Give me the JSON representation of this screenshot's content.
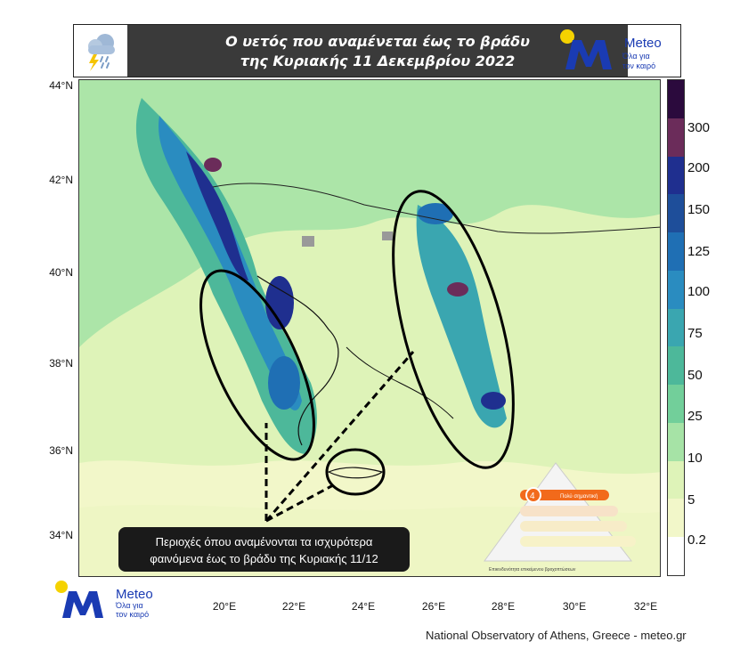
{
  "title": {
    "line1": "Ο υετός που αναμένεται έως το βράδυ",
    "line2": "της Κυριακής 11 Δεκεμβρίου 2022"
  },
  "logo": {
    "brand": "Meteo",
    "tagline_line1": "Όλα για",
    "tagline_line2": "τον καιρό",
    "colors": {
      "sun": "#f5d200",
      "m": "#1a3bb3",
      "text": "#1a3bb3"
    }
  },
  "icons": [
    "weather-storm-icon",
    "meteo-logo-icon"
  ],
  "axes": {
    "latitudes": [
      "44°N",
      "42°N",
      "40°N",
      "38°N",
      "36°N",
      "34°N"
    ],
    "longitudes": [
      "20°E",
      "22°E",
      "24°E",
      "26°E",
      "28°E",
      "30°E",
      "32°E"
    ]
  },
  "colorbar": {
    "labels": [
      "300",
      "200",
      "150",
      "125",
      "100",
      "75",
      "50",
      "25",
      "10",
      "5",
      "0.2"
    ],
    "colors": [
      "#2b0a3d",
      "#6b2c5a",
      "#1f2f8f",
      "#1e4e9a",
      "#1f6fb4",
      "#2a8cc0",
      "#3aa6b0",
      "#4db89a",
      "#72cf9a",
      "#a6e3a6",
      "#def3b8",
      "#f2f7c9",
      "#ffffff"
    ]
  },
  "callout": {
    "line1": "Περιοχές όπου αναμένονται τα ισχυρότερα",
    "line2": "φαινόμενα έως το βράδυ της Κυριακής 11/12"
  },
  "warning_scale": {
    "active_level": "4",
    "active_label": "Πολύ σημαντική",
    "caption": "Επικινδυνότητα επικείμενου βροχοπτώσεων",
    "accent": "#f26a1b"
  },
  "credit": "National Observatory of Athens, Greece - meteo.gr"
}
